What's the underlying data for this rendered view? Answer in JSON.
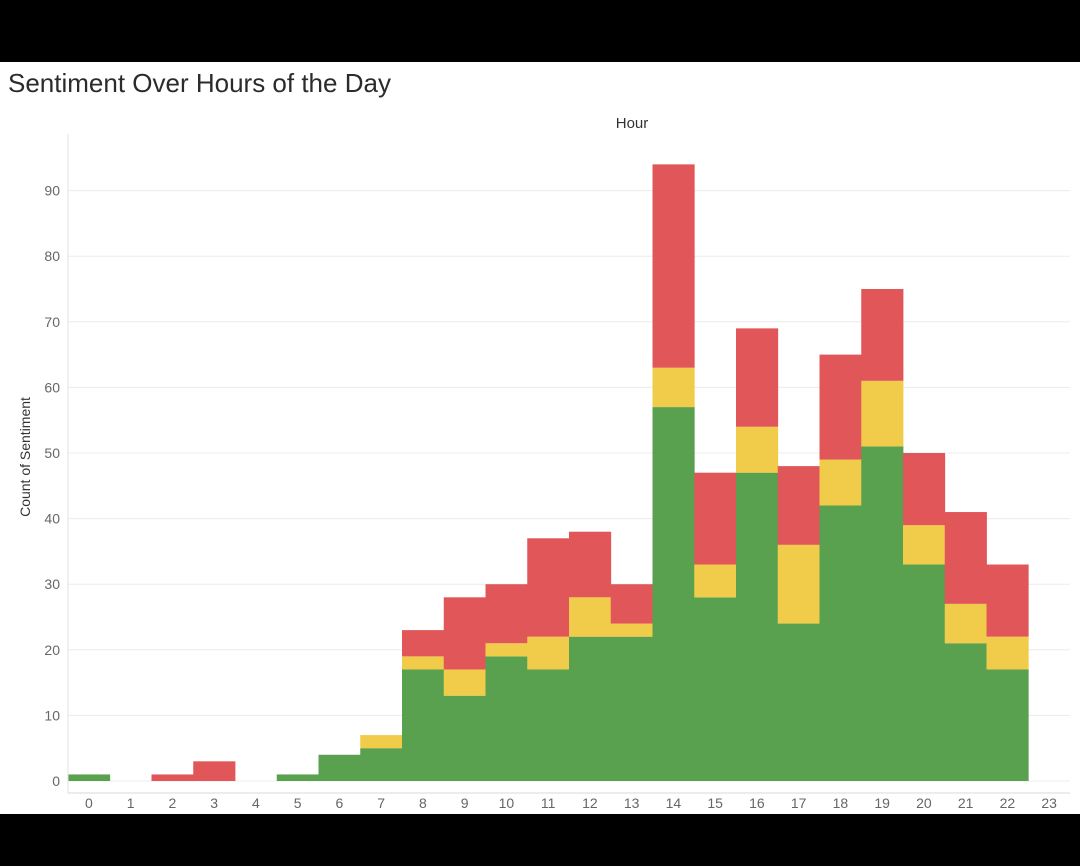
{
  "chart_data": {
    "type": "bar",
    "stacked": true,
    "title": "Sentiment Over Hours of the Day",
    "top_axis_label": "Hour",
    "ylabel": "Count of Sentiment",
    "categories": [
      0,
      1,
      2,
      3,
      4,
      5,
      6,
      7,
      8,
      9,
      10,
      11,
      12,
      13,
      14,
      15,
      16,
      17,
      18,
      19,
      20,
      21,
      22,
      23
    ],
    "yticks": [
      0,
      10,
      20,
      30,
      40,
      50,
      60,
      70,
      80,
      90
    ],
    "ylim": [
      0,
      95
    ],
    "grid": true,
    "legend": "none",
    "series": [
      {
        "color": "#59a14f",
        "values": [
          1,
          0,
          0,
          0,
          0,
          1,
          4,
          5,
          17,
          13,
          19,
          17,
          22,
          22,
          57,
          28,
          47,
          24,
          42,
          51,
          33,
          21,
          17,
          0
        ]
      },
      {
        "color": "#f1cb4a",
        "values": [
          0,
          0,
          0,
          0,
          0,
          0,
          0,
          2,
          2,
          4,
          2,
          5,
          6,
          2,
          6,
          5,
          7,
          12,
          7,
          10,
          6,
          6,
          5,
          0
        ]
      },
      {
        "color": "#e15759",
        "values": [
          0,
          0,
          1,
          3,
          0,
          0,
          0,
          0,
          4,
          11,
          9,
          15,
          10,
          6,
          31,
          14,
          15,
          12,
          16,
          14,
          11,
          14,
          11,
          0
        ]
      }
    ]
  }
}
